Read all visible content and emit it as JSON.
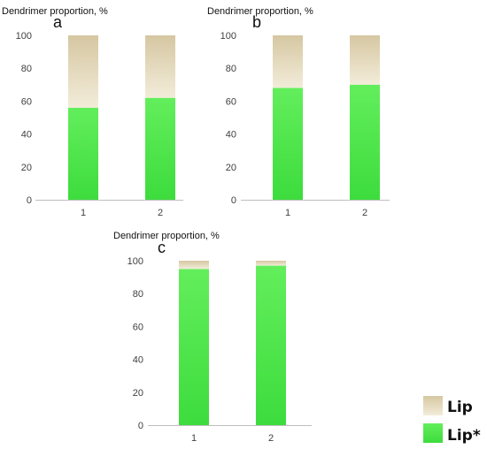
{
  "chart_data": [
    {
      "type": "bar",
      "stacked": true,
      "panel_label": "a",
      "title": "Dendrimer proportion, %",
      "categories": [
        "1",
        "2"
      ],
      "series": [
        {
          "name": "Lip*",
          "values": [
            56,
            62
          ]
        },
        {
          "name": "Lip",
          "values": [
            44,
            38
          ]
        }
      ],
      "ylim": [
        0,
        100
      ],
      "yticks": [
        "0",
        "20",
        "40",
        "60",
        "80",
        "100"
      ],
      "grid": false
    },
    {
      "type": "bar",
      "stacked": true,
      "panel_label": "b",
      "title": "Dendrimer proportion, %",
      "categories": [
        "1",
        "2"
      ],
      "series": [
        {
          "name": "Lip*",
          "values": [
            68,
            70
          ]
        },
        {
          "name": "Lip",
          "values": [
            32,
            30
          ]
        }
      ],
      "ylim": [
        0,
        100
      ],
      "yticks": [
        "0",
        "20",
        "40",
        "60",
        "80",
        "100"
      ],
      "grid": false
    },
    {
      "type": "bar",
      "stacked": true,
      "panel_label": "c",
      "title": "Dendrimer proportion, %",
      "categories": [
        "1",
        "2"
      ],
      "series": [
        {
          "name": "Lip*",
          "values": [
            95,
            97
          ]
        },
        {
          "name": "Lip",
          "values": [
            5,
            3
          ]
        }
      ],
      "ylim": [
        0,
        100
      ],
      "yticks": [
        "0",
        "20",
        "40",
        "60",
        "80",
        "100"
      ],
      "grid": false
    }
  ],
  "legend": {
    "position": "bottom-right",
    "items": [
      {
        "label": "Lip",
        "color": "#e3d6b6"
      },
      {
        "label": "Lip*",
        "color": "#45e245"
      }
    ]
  },
  "colors": {
    "lip_star": "#45e245",
    "lip": "#e3d6b6",
    "axis": "#bfbfbf"
  }
}
